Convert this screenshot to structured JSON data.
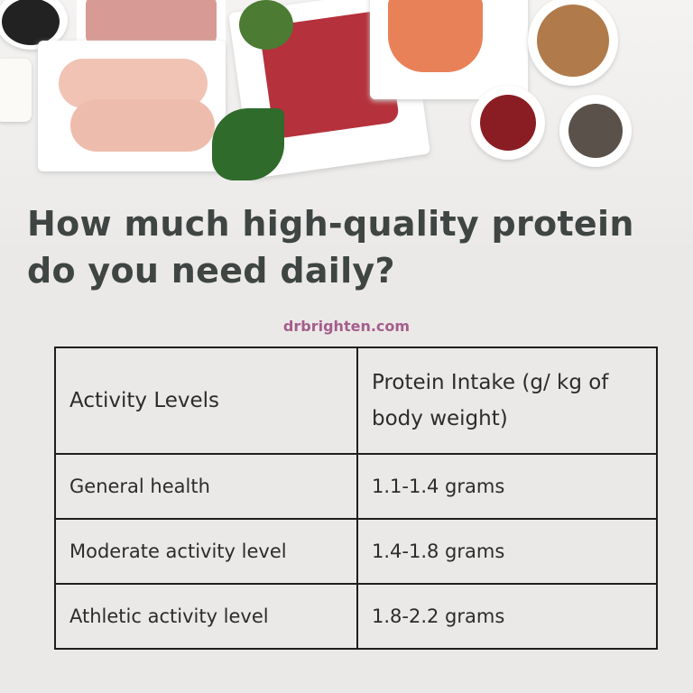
{
  "header_image": {
    "description_icon": "protein-foods-photo"
  },
  "title": "How much high-quality protein do you need daily?",
  "website": "drbrighten.com",
  "table": {
    "headers": [
      "Activity Levels",
      "Protein Intake (g/ kg of body weight)"
    ],
    "rows": [
      [
        "General health",
        "1.1-1.4 grams"
      ],
      [
        "Moderate activity level",
        "1.4-1.8 grams"
      ],
      [
        "Athletic activity level",
        "1.8-2.2 grams"
      ]
    ]
  },
  "colors": {
    "title": "#3e4543",
    "website": "#a45e8c",
    "background": "#ebe9e7"
  }
}
